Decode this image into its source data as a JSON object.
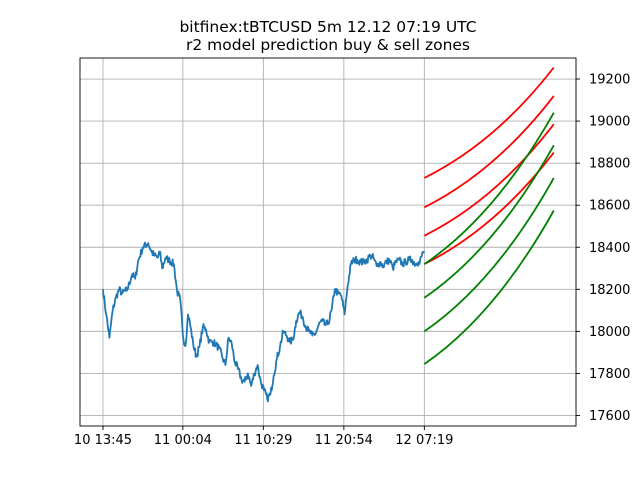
{
  "chart_data": {
    "type": "line",
    "title": "bitfinex:tBTCUSD 5m 12.12 07:19 UTC",
    "subtitle": "r2 model prediction buy & sell zones",
    "xlabel": "",
    "ylabel": "",
    "grid": true,
    "y_axis_side": "right",
    "x_ticks": [
      "10 13:45",
      "11 00:04",
      "11 10:29",
      "11 20:54",
      "12 07:19"
    ],
    "x_tick_steps": [
      0,
      124,
      249,
      374,
      499
    ],
    "ylim": [
      17550,
      19300
    ],
    "y_ticks": [
      17600,
      17800,
      18000,
      18200,
      18400,
      18600,
      18800,
      19000,
      19200
    ],
    "price_series": {
      "name": "",
      "color": "#1f77b4",
      "anchor_steps": [
        0,
        5,
        10,
        15,
        20,
        25,
        30,
        38,
        45,
        50,
        55,
        62,
        70,
        75,
        80,
        85,
        88,
        92,
        97,
        102,
        110,
        115,
        120,
        124,
        128,
        132,
        135,
        140,
        145,
        150,
        155,
        160,
        165,
        170,
        175,
        180,
        185,
        190,
        195,
        200,
        205,
        210,
        215,
        220,
        225,
        230,
        235,
        240,
        245,
        250,
        255,
        260,
        265,
        270,
        275,
        280,
        285,
        290,
        295,
        300,
        305,
        310,
        315,
        320,
        325,
        330,
        335,
        340,
        345,
        350,
        355,
        360,
        365,
        370,
        375,
        380,
        385,
        390,
        395,
        400,
        405,
        410,
        415,
        420,
        425,
        430,
        435,
        440,
        445,
        450,
        455,
        460,
        465,
        470,
        475,
        480,
        485,
        490,
        495,
        499
      ],
      "anchor_values": [
        18200,
        18080,
        17970,
        18100,
        18160,
        18200,
        18180,
        18200,
        18270,
        18250,
        18340,
        18400,
        18420,
        18380,
        18360,
        18350,
        18380,
        18300,
        18350,
        18340,
        18320,
        18190,
        18150,
        17980,
        17930,
        18080,
        18040,
        17940,
        17880,
        17930,
        18020,
        18010,
        17950,
        17950,
        17940,
        17920,
        17880,
        17840,
        17970,
        17940,
        17850,
        17820,
        17770,
        17760,
        17800,
        17740,
        17800,
        17840,
        17760,
        17720,
        17680,
        17700,
        17790,
        17870,
        17930,
        18000,
        17980,
        17950,
        17960,
        18050,
        18090,
        18070,
        18020,
        18000,
        17980,
        17990,
        18030,
        18050,
        18030,
        18040,
        18100,
        18200,
        18180,
        18170,
        18080,
        18220,
        18320,
        18340,
        18340,
        18330,
        18330,
        18340,
        18360,
        18350,
        18310,
        18330,
        18310,
        18330,
        18340,
        18300,
        18330,
        18340,
        18320,
        18330,
        18340,
        18340,
        18320,
        18330,
        18360,
        18380
      ]
    },
    "prediction_zones": {
      "start_step": 499,
      "end_step": 700,
      "sell": {
        "color": "#ff0000",
        "start_values": [
          18730,
          18590,
          18455,
          18320
        ],
        "end_values": [
          19255,
          19120,
          18985,
          18850
        ]
      },
      "buy": {
        "color": "#008000",
        "start_values": [
          18320,
          18160,
          18000,
          17845
        ],
        "end_values": [
          19040,
          18885,
          18730,
          18575
        ]
      }
    }
  }
}
